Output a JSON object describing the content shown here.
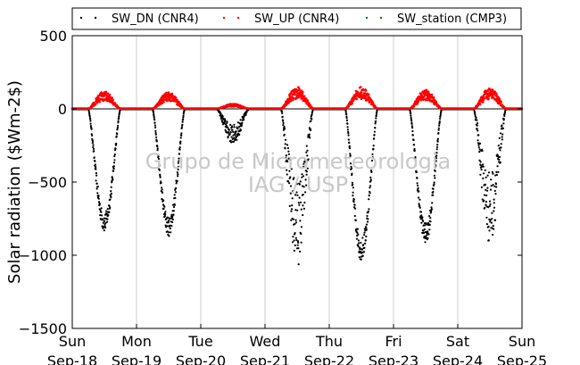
{
  "chart_data": {
    "type": "scatter",
    "ylabel": "Solar radiation ($Wm-2$)",
    "ylim": [
      -1500,
      500
    ],
    "yticks": [
      500,
      0,
      -500,
      -1000,
      -1500
    ],
    "xlim": [
      "2016-09-18",
      "2016-09-25"
    ],
    "xtick_labels": [
      [
        "Sun",
        "Sep-18"
      ],
      [
        "Mon",
        "Sep-19"
      ],
      [
        "Tue",
        "Sep-20"
      ],
      [
        "Wed",
        "Sep-21"
      ],
      [
        "Thu",
        "Sep-22"
      ],
      [
        "Fri",
        "Sep-23"
      ],
      [
        "Sat",
        "Sep-24"
      ],
      [
        "Sun",
        "Sep-25"
      ]
    ],
    "grid": "vertical",
    "legend": "top",
    "watermark": [
      "Grupo de Micrometeorologia",
      "IAG / USP"
    ],
    "series": [
      {
        "name": "SW_DN (CNR4)",
        "color": "#000000",
        "daily_peaks": [
          -840,
          -870,
          -240,
          -1080,
          -1040,
          -920,
          -930
        ]
      },
      {
        "name": "SW_UP (CNR4)",
        "color": "#ff0000",
        "daily_peaks": [
          120,
          115,
          35,
          150,
          150,
          130,
          145
        ]
      },
      {
        "name": "SW_station (CMP3)",
        "color": "#008000",
        "daily_peaks": []
      }
    ]
  }
}
